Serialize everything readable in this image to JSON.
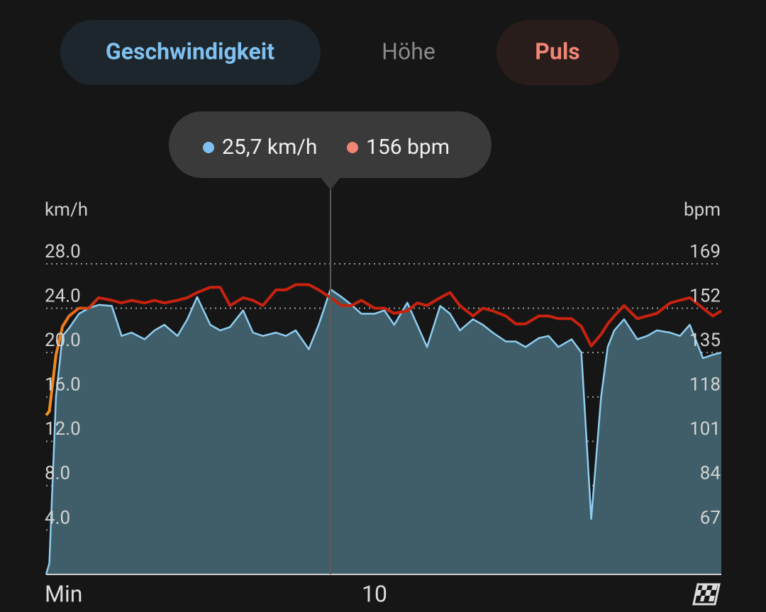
{
  "tabs": [
    "Geschwindigkeit",
    "Höhe",
    "Puls"
  ],
  "tooltip": {
    "speed": "25,7 km/h",
    "pulse": "156 bpm"
  },
  "chart_data": {
    "type": "line",
    "y_label": "km/h",
    "y2_label": "bpm",
    "x_label": "Min",
    "xlim": [
      0,
      20.56
    ],
    "xticks": [
      10
    ],
    "ylim": [
      0,
      28
    ],
    "yticks": [
      {
        "value": 4,
        "label": "4.0"
      },
      {
        "value": 8,
        "label": "8.0"
      },
      {
        "value": 12,
        "label": "12.0"
      },
      {
        "value": 16,
        "label": "16.0"
      },
      {
        "value": 20,
        "label": "20.0"
      },
      {
        "value": 24,
        "label": "24.0"
      },
      {
        "value": 28,
        "label": "28.0"
      }
    ],
    "y2lim": [
      50,
      169
    ],
    "y2ticks": [
      67,
      84,
      101,
      118,
      135,
      152,
      169
    ],
    "grid": true,
    "x": [
      0,
      0.1,
      0.3,
      0.5,
      0.7,
      1.0,
      1.3,
      1.6,
      2.0,
      2.3,
      2.6,
      3.0,
      3.3,
      3.6,
      4.0,
      4.3,
      4.6,
      5.0,
      5.3,
      5.6,
      6.0,
      6.3,
      6.6,
      7.0,
      7.3,
      7.6,
      8.0,
      8.3,
      8.66,
      9.0,
      9.3,
      9.6,
      10.0,
      10.3,
      10.6,
      11.0,
      11.3,
      11.6,
      12.0,
      12.3,
      12.6,
      13.0,
      13.3,
      13.6,
      14.0,
      14.3,
      14.6,
      15.0,
      15.3,
      15.6,
      16.0,
      16.3,
      16.6,
      16.9,
      17.1,
      17.3,
      17.6,
      18.0,
      18.3,
      18.6,
      19.0,
      19.3,
      19.6,
      20.0,
      20.3,
      20.56
    ],
    "series": [
      {
        "name": "Geschwindigkeit",
        "color": "#8ecdf0",
        "fill": "#3f5e69",
        "values": [
          0,
          1,
          16,
          21.5,
          22.2,
          23.5,
          24,
          24.3,
          24.2,
          21.5,
          21.8,
          21.2,
          22,
          22.5,
          21.5,
          23,
          25,
          22.5,
          22,
          22.3,
          23.8,
          21.8,
          21.5,
          21.8,
          21.5,
          22,
          20.3,
          22.5,
          25.7,
          25,
          24.3,
          23.5,
          23.5,
          23.8,
          22.5,
          24.5,
          22.5,
          20.5,
          24.2,
          23.5,
          22,
          23,
          22.5,
          21.8,
          21,
          21,
          20.5,
          21.3,
          21.5,
          20.5,
          21.2,
          20,
          5,
          16,
          20.5,
          22,
          23,
          21.2,
          21.5,
          22,
          21.8,
          21.5,
          22.5,
          19.5,
          19.8,
          20
        ]
      },
      {
        "name": "Puls",
        "color": "#c8220f",
        "axis": "y2",
        "values": [
          111,
          112.5,
          134,
          145,
          149,
          152,
          152,
          156,
          155,
          154,
          155,
          154,
          155,
          154,
          155,
          156,
          158,
          160,
          160,
          153,
          156,
          155,
          153,
          159,
          159,
          161,
          161,
          159,
          156,
          153,
          153,
          155,
          152,
          152,
          150,
          151,
          154,
          153,
          156,
          158,
          153,
          149,
          152,
          151,
          149,
          146,
          146,
          149,
          149,
          148,
          148,
          145,
          137.5,
          142,
          146,
          149,
          153,
          148,
          149,
          150,
          154,
          155,
          156,
          152,
          149,
          151
        ]
      }
    ]
  }
}
